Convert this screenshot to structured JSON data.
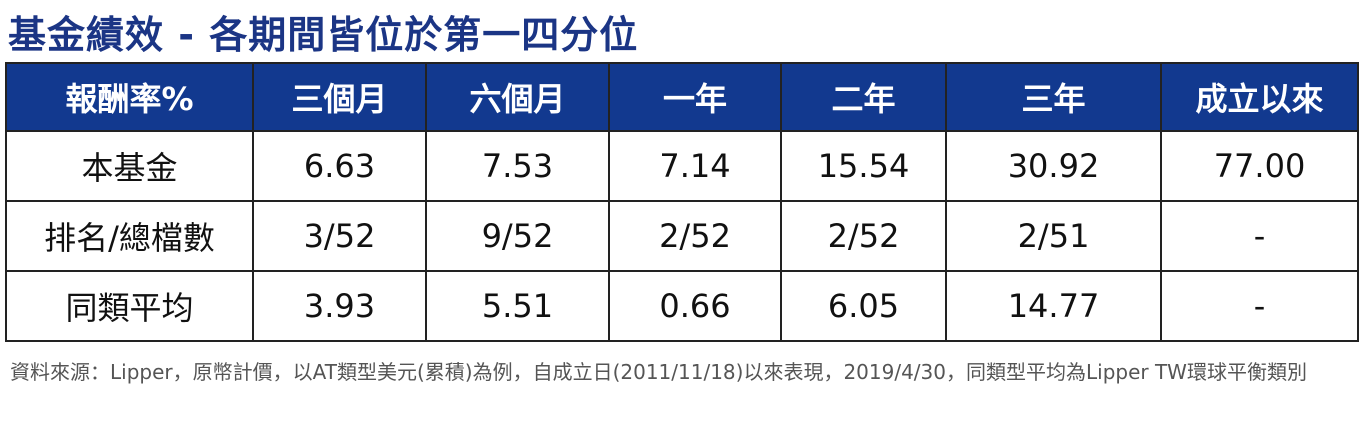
{
  "header": {
    "title": "基金績效 - 各期間皆位於第一四分位"
  },
  "table": {
    "columns": [
      "報酬率%",
      "三個月",
      "六個月",
      "一年",
      "二年",
      "三年",
      "成立以來"
    ],
    "rows": [
      [
        "本基金",
        "6.63",
        "7.53",
        "7.14",
        "15.54",
        "30.92",
        "77.00"
      ],
      [
        "排名/總檔數",
        "3/52",
        "9/52",
        "2/52",
        "2/52",
        "2/51",
        "-"
      ],
      [
        "同類平均",
        "3.93",
        "5.51",
        "0.66",
        "6.05",
        "14.77",
        "-"
      ]
    ]
  },
  "footnote": "資料來源：Lipper，原幣計價，以AT類型美元(累積)為例，自成立日(2011/11/18)以來表現，2019/4/30，同類型平均為Lipper TW環球平衡類別"
}
